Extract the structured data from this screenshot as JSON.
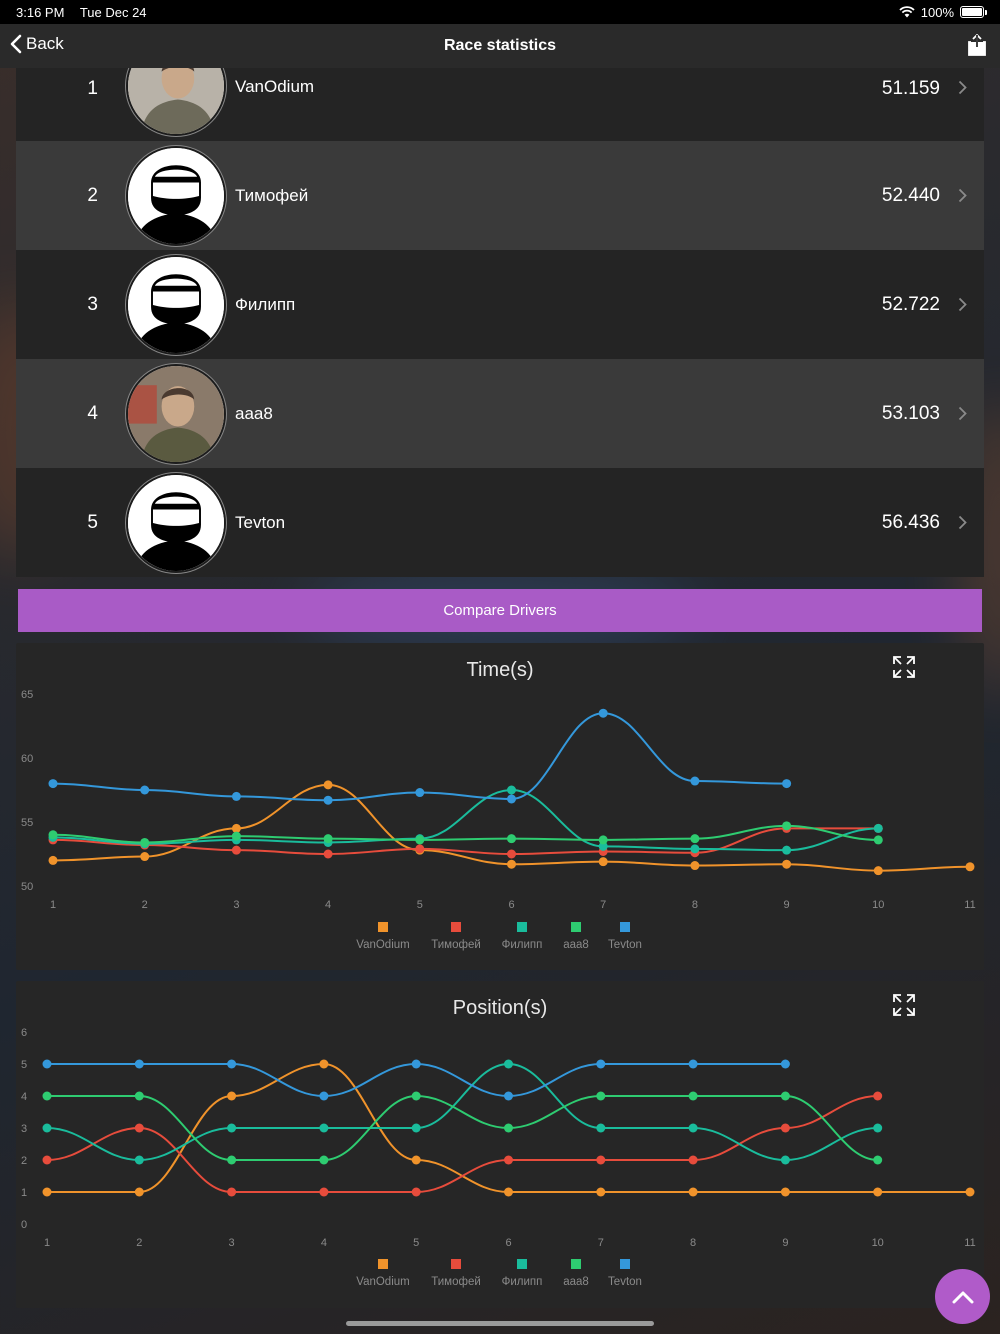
{
  "status_bar": {
    "time": "3:16 PM",
    "date": "Tue Dec 24",
    "battery": "100%"
  },
  "nav": {
    "back_label": "Back",
    "title": "Race statistics"
  },
  "drivers": [
    {
      "rank": "1",
      "name": "VanOdium",
      "time": "51.159",
      "avatar": "photo"
    },
    {
      "rank": "2",
      "name": "Тимофей",
      "time": "52.440",
      "avatar": "helmet"
    },
    {
      "rank": "3",
      "name": "Филипп",
      "time": "52.722",
      "avatar": "helmet"
    },
    {
      "rank": "4",
      "name": "aaa8",
      "time": "53.103",
      "avatar": "photo"
    },
    {
      "rank": "5",
      "name": "Tevton",
      "time": "56.436",
      "avatar": "helmet"
    }
  ],
  "compare_label": "Compare Drivers",
  "colors": {
    "accent": "#a95bc6",
    "VanOdium": "#f0932b",
    "Тимофей": "#e74c3c",
    "Филипп": "#1abc9c",
    "aaa8": "#2ecc71",
    "Tevton": "#3498db"
  },
  "chart_data": [
    {
      "type": "line",
      "title": "Time(s)",
      "x": [
        1,
        2,
        3,
        4,
        5,
        6,
        7,
        8,
        9,
        10,
        11
      ],
      "ylim": [
        50,
        65
      ],
      "yticks": [
        50,
        55,
        60,
        65
      ],
      "legend_placement": "bottom",
      "series": [
        {
          "name": "VanOdium",
          "color": "#f0932b",
          "values": [
            52.0,
            52.3,
            54.5,
            57.9,
            52.8,
            51.7,
            51.9,
            51.6,
            51.7,
            51.2,
            51.5
          ]
        },
        {
          "name": "Тимофей",
          "color": "#e74c3c",
          "values": [
            53.6,
            53.2,
            52.8,
            52.5,
            52.9,
            52.5,
            52.7,
            52.6,
            54.5,
            54.5,
            null
          ]
        },
        {
          "name": "Филипп",
          "color": "#1abc9c",
          "values": [
            53.8,
            53.3,
            53.6,
            53.4,
            53.7,
            57.5,
            53.1,
            52.9,
            52.8,
            54.5,
            null
          ]
        },
        {
          "name": "aaa8",
          "color": "#2ecc71",
          "values": [
            54.0,
            53.4,
            53.9,
            53.7,
            53.6,
            53.7,
            53.6,
            53.7,
            54.7,
            53.6,
            null
          ]
        },
        {
          "name": "Tevton",
          "color": "#3498db",
          "values": [
            58.0,
            57.5,
            57.0,
            56.7,
            57.3,
            56.8,
            63.5,
            58.2,
            58.0,
            null,
            null
          ]
        }
      ]
    },
    {
      "type": "line",
      "title": "Position(s)",
      "x": [
        1,
        2,
        3,
        4,
        5,
        6,
        7,
        8,
        9,
        10,
        11
      ],
      "ylim": [
        0,
        6
      ],
      "yticks": [
        0,
        1,
        2,
        3,
        4,
        5,
        6
      ],
      "legend_placement": "bottom",
      "series": [
        {
          "name": "VanOdium",
          "color": "#f0932b",
          "values": [
            1,
            1,
            4,
            5,
            2,
            1,
            1,
            1,
            1,
            1,
            1
          ]
        },
        {
          "name": "Тимофей",
          "color": "#e74c3c",
          "values": [
            2,
            3,
            1,
            1,
            1,
            2,
            2,
            2,
            3,
            4,
            null
          ]
        },
        {
          "name": "Филипп",
          "color": "#1abc9c",
          "values": [
            3,
            2,
            3,
            3,
            3,
            5,
            3,
            3,
            2,
            3,
            null
          ]
        },
        {
          "name": "aaa8",
          "color": "#2ecc71",
          "values": [
            4,
            4,
            2,
            2,
            4,
            3,
            4,
            4,
            4,
            2,
            null
          ]
        },
        {
          "name": "Tevton",
          "color": "#3498db",
          "values": [
            5,
            5,
            5,
            4,
            5,
            4,
            5,
            5,
            5,
            null,
            null
          ]
        }
      ]
    }
  ]
}
